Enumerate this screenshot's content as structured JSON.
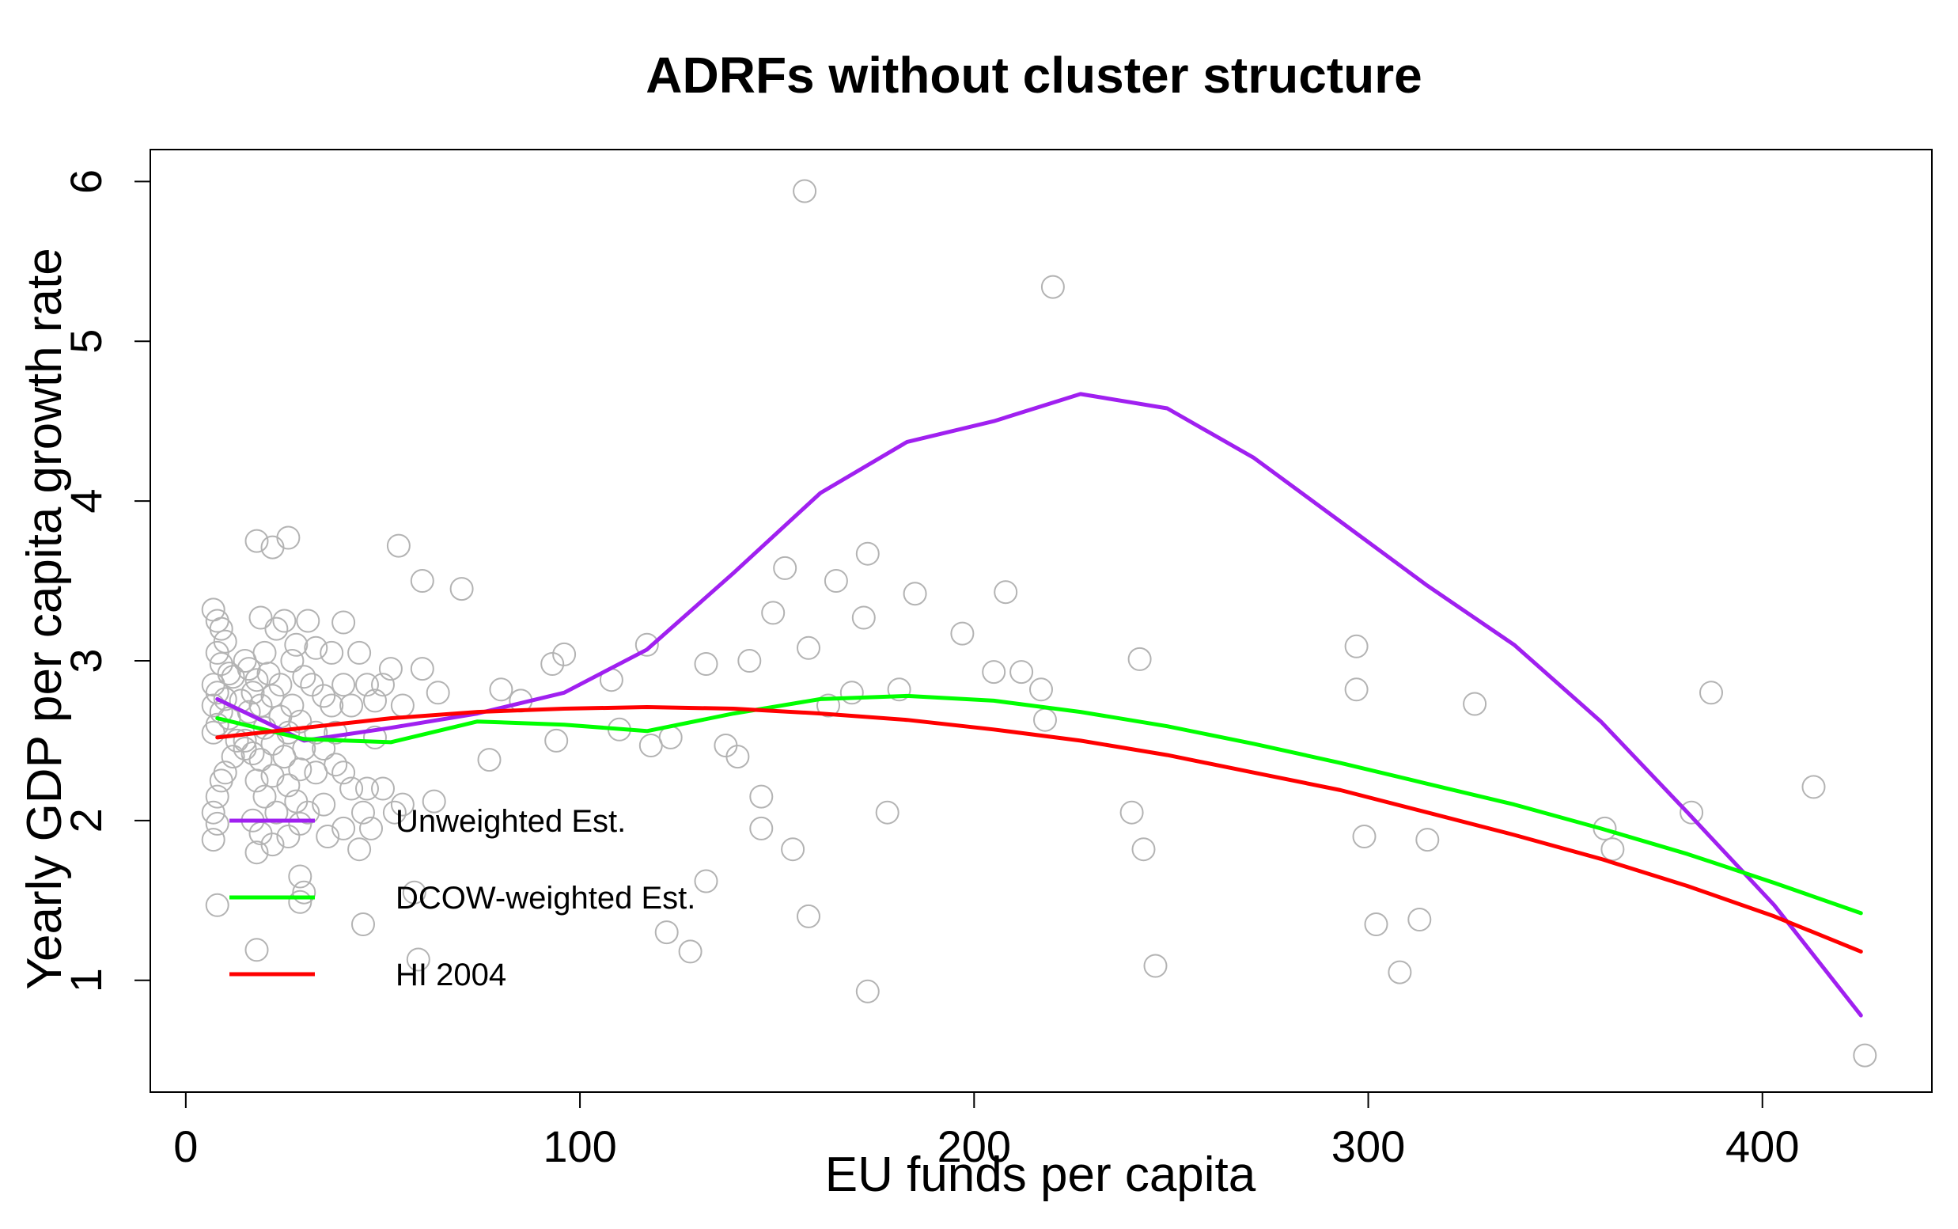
{
  "chart_data": {
    "type": "scatter",
    "title": "ADRFs without cluster structure",
    "xlabel": "EU funds per capita",
    "ylabel": "Yearly GDP per capita growth rate",
    "xlim": [
      -9,
      443
    ],
    "ylim": [
      0.3,
      6.2
    ],
    "xticks": [
      0,
      100,
      200,
      300,
      400
    ],
    "yticks": [
      1,
      2,
      3,
      4,
      5,
      6
    ],
    "xtick_labels": [
      "0",
      "100",
      "200",
      "300",
      "400"
    ],
    "ytick_labels": [
      "1",
      "2",
      "3",
      "4",
      "5",
      "6"
    ],
    "grid": false,
    "legend_position": "bottom-left",
    "points_color": "#b3b3b3",
    "points": [
      [
        7,
        3.32
      ],
      [
        8,
        3.25
      ],
      [
        9,
        3.2
      ],
      [
        10,
        3.12
      ],
      [
        8,
        3.05
      ],
      [
        9,
        2.98
      ],
      [
        11,
        2.92
      ],
      [
        12,
        2.9
      ],
      [
        7,
        2.85
      ],
      [
        8,
        2.8
      ],
      [
        10,
        2.76
      ],
      [
        7,
        2.72
      ],
      [
        9,
        2.68
      ],
      [
        11,
        2.64
      ],
      [
        8,
        2.6
      ],
      [
        7,
        2.55
      ],
      [
        13,
        2.5
      ],
      [
        15,
        2.45
      ],
      [
        12,
        2.4
      ],
      [
        10,
        2.3
      ],
      [
        9,
        2.25
      ],
      [
        8,
        2.15
      ],
      [
        7,
        2.05
      ],
      [
        8,
        1.98
      ],
      [
        7,
        1.88
      ],
      [
        8,
        1.47
      ],
      [
        18,
        3.75
      ],
      [
        22,
        3.71
      ],
      [
        26,
        3.77
      ],
      [
        19,
        3.27
      ],
      [
        25,
        3.25
      ],
      [
        31,
        3.25
      ],
      [
        40,
        3.24
      ],
      [
        23,
        3.2
      ],
      [
        28,
        3.1
      ],
      [
        33,
        3.08
      ],
      [
        20,
        3.05
      ],
      [
        37,
        3.05
      ],
      [
        15,
        3.0
      ],
      [
        27,
        3.0
      ],
      [
        44,
        3.05
      ],
      [
        16,
        2.95
      ],
      [
        21,
        2.92
      ],
      [
        30,
        2.9
      ],
      [
        18,
        2.88
      ],
      [
        24,
        2.85
      ],
      [
        32,
        2.85
      ],
      [
        40,
        2.85
      ],
      [
        46,
        2.85
      ],
      [
        50,
        2.85
      ],
      [
        17,
        2.8
      ],
      [
        22,
        2.78
      ],
      [
        35,
        2.78
      ],
      [
        14,
        2.75
      ],
      [
        19,
        2.72
      ],
      [
        27,
        2.72
      ],
      [
        37,
        2.72
      ],
      [
        42,
        2.72
      ],
      [
        16,
        2.68
      ],
      [
        24,
        2.65
      ],
      [
        29,
        2.62
      ],
      [
        20,
        2.58
      ],
      [
        26,
        2.55
      ],
      [
        33,
        2.55
      ],
      [
        38,
        2.55
      ],
      [
        48,
        2.52
      ],
      [
        15,
        2.5
      ],
      [
        22,
        2.48
      ],
      [
        30,
        2.45
      ],
      [
        35,
        2.45
      ],
      [
        17,
        2.42
      ],
      [
        25,
        2.4
      ],
      [
        19,
        2.38
      ],
      [
        38,
        2.35
      ],
      [
        29,
        2.32
      ],
      [
        22,
        2.28
      ],
      [
        33,
        2.3
      ],
      [
        40,
        2.3
      ],
      [
        18,
        2.25
      ],
      [
        26,
        2.22
      ],
      [
        42,
        2.2
      ],
      [
        46,
        2.2
      ],
      [
        50,
        2.2
      ],
      [
        20,
        2.15
      ],
      [
        28,
        2.12
      ],
      [
        35,
        2.1
      ],
      [
        55,
        2.1
      ],
      [
        23,
        2.05
      ],
      [
        31,
        2.05
      ],
      [
        45,
        2.05
      ],
      [
        53,
        2.05
      ],
      [
        17,
        2.0
      ],
      [
        29,
        1.98
      ],
      [
        40,
        1.95
      ],
      [
        47,
        1.95
      ],
      [
        19,
        1.92
      ],
      [
        26,
        1.9
      ],
      [
        36,
        1.9
      ],
      [
        22,
        1.85
      ],
      [
        44,
        1.82
      ],
      [
        18,
        1.8
      ],
      [
        29,
        1.65
      ],
      [
        30,
        1.55
      ],
      [
        29,
        1.49
      ],
      [
        45,
        1.35
      ],
      [
        18,
        1.19
      ],
      [
        54,
        3.72
      ],
      [
        60,
        3.5
      ],
      [
        70,
        3.45
      ],
      [
        60,
        2.95
      ],
      [
        52,
        2.95
      ],
      [
        48,
        2.75
      ],
      [
        55,
        2.72
      ],
      [
        63,
        2.12
      ],
      [
        64,
        2.8
      ],
      [
        58,
        1.55
      ],
      [
        59,
        1.13
      ],
      [
        80,
        2.82
      ],
      [
        77,
        2.38
      ],
      [
        85,
        2.75
      ],
      [
        93,
        2.98
      ],
      [
        96,
        3.04
      ],
      [
        94,
        2.5
      ],
      [
        108,
        2.88
      ],
      [
        110,
        2.57
      ],
      [
        117,
        3.1
      ],
      [
        118,
        2.47
      ],
      [
        123,
        2.52
      ],
      [
        122,
        1.3
      ],
      [
        128,
        1.18
      ],
      [
        132,
        2.98
      ],
      [
        132,
        1.62
      ],
      [
        137,
        2.47
      ],
      [
        140,
        2.4
      ],
      [
        143,
        3.0
      ],
      [
        146,
        2.15
      ],
      [
        146,
        1.95
      ],
      [
        149,
        3.3
      ],
      [
        152,
        3.58
      ],
      [
        154,
        1.82
      ],
      [
        158,
        3.08
      ],
      [
        157,
        5.94
      ],
      [
        158,
        1.4
      ],
      [
        163,
        2.72
      ],
      [
        165,
        3.5
      ],
      [
        169,
        2.8
      ],
      [
        172,
        3.27
      ],
      [
        173,
        3.67
      ],
      [
        173,
        0.93
      ],
      [
        178,
        2.05
      ],
      [
        181,
        2.82
      ],
      [
        185,
        3.42
      ],
      [
        197,
        3.17
      ],
      [
        205,
        2.93
      ],
      [
        208,
        3.43
      ],
      [
        212,
        2.93
      ],
      [
        217,
        2.82
      ],
      [
        218,
        2.63
      ],
      [
        220,
        5.34
      ],
      [
        240,
        2.05
      ],
      [
        242,
        3.01
      ],
      [
        243,
        1.82
      ],
      [
        246,
        1.09
      ],
      [
        297,
        2.82
      ],
      [
        297,
        3.09
      ],
      [
        299,
        1.9
      ],
      [
        302,
        1.35
      ],
      [
        308,
        1.05
      ],
      [
        313,
        1.38
      ],
      [
        315,
        1.88
      ],
      [
        327,
        2.73
      ],
      [
        360,
        1.95
      ],
      [
        362,
        1.82
      ],
      [
        382,
        2.05
      ],
      [
        387,
        2.8
      ],
      [
        413,
        2.21
      ],
      [
        426,
        0.53
      ]
    ],
    "series": [
      {
        "name": "Unweighted Est.",
        "color": "#a020f0",
        "x": [
          8,
          30,
          52,
          74,
          96,
          117,
          139,
          161,
          183,
          205,
          227,
          249,
          271,
          293,
          315,
          337,
          359,
          381,
          403,
          425
        ],
        "y": [
          2.76,
          2.5,
          2.58,
          2.67,
          2.8,
          3.07,
          3.55,
          4.05,
          4.37,
          4.5,
          4.67,
          4.58,
          4.27,
          3.87,
          3.47,
          3.1,
          2.62,
          2.05,
          1.47,
          0.78
        ]
      },
      {
        "name": "DCOW-weighted Est.",
        "color": "#00ff00",
        "x": [
          8,
          30,
          52,
          74,
          96,
          117,
          139,
          161,
          183,
          205,
          227,
          249,
          271,
          293,
          315,
          337,
          359,
          381,
          403,
          425
        ],
        "y": [
          2.64,
          2.51,
          2.49,
          2.62,
          2.6,
          2.56,
          2.67,
          2.76,
          2.78,
          2.75,
          2.68,
          2.59,
          2.48,
          2.36,
          2.23,
          2.1,
          1.95,
          1.79,
          1.61,
          1.42
        ]
      },
      {
        "name": "HI 2004",
        "color": "#ff0000",
        "x": [
          8,
          30,
          52,
          74,
          96,
          117,
          139,
          161,
          183,
          205,
          227,
          249,
          271,
          293,
          315,
          337,
          359,
          381,
          403,
          425
        ],
        "y": [
          2.52,
          2.58,
          2.64,
          2.68,
          2.7,
          2.71,
          2.7,
          2.67,
          2.63,
          2.57,
          2.5,
          2.41,
          2.3,
          2.19,
          2.05,
          1.91,
          1.76,
          1.59,
          1.4,
          1.18
        ]
      }
    ]
  }
}
